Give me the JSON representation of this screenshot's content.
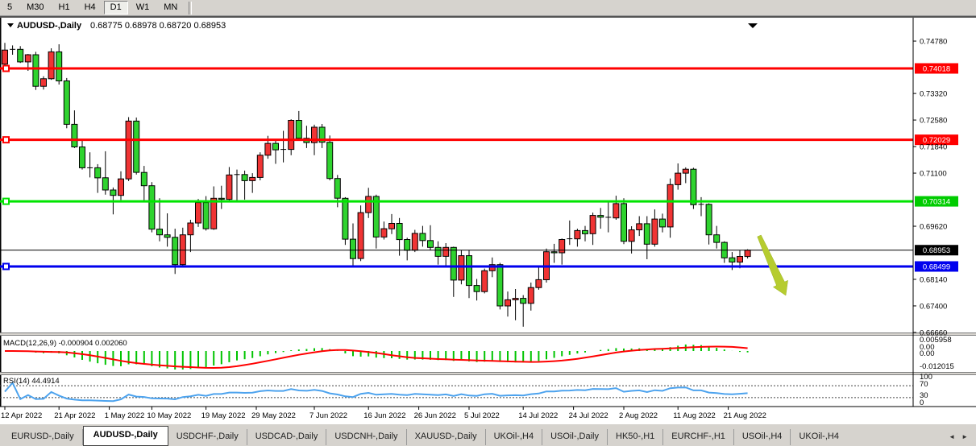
{
  "toolbar": {
    "timeframes": [
      "5",
      "M30",
      "H1",
      "H4",
      "D1",
      "W1",
      "MN"
    ],
    "active": "D1"
  },
  "chart": {
    "title_symbol": "AUDUSD-,Daily",
    "title_ohlc": "0.68775 0.68978 0.68720 0.68953"
  },
  "chart_data": {
    "type": "candlestick",
    "symbol": "AUDUSD-,Daily",
    "colors": {
      "up_body": "#f03434",
      "down_body": "#2fd32f",
      "wick": "#000000",
      "macd_histogram": "#00c400",
      "macd_signal": "#ff0000",
      "rsi_line": "#4da3ee",
      "arrow": "#b6cc2f"
    },
    "y_axis_ticks": [
      "0.74780",
      "0.73320",
      "0.72580",
      "0.71840",
      "0.71100",
      "0.69620",
      "0.68140",
      "0.67400",
      "0.66660"
    ],
    "h_lines": [
      {
        "label": "0.74018",
        "price": 0.74018,
        "color": "#ff0000"
      },
      {
        "label": "0.72029",
        "price": 0.72029,
        "color": "#ff0000"
      },
      {
        "label": "0.70314",
        "price": 0.70314,
        "color": "#00e400"
      },
      {
        "label": "0.68499",
        "price": 0.68499,
        "color": "#0000ee"
      }
    ],
    "current_price": {
      "label": "0.68953",
      "price": 0.68953,
      "color": "#000000"
    },
    "x_labels": [
      {
        "label": "12 Apr 2022",
        "i": 0
      },
      {
        "label": "21 Apr 2022",
        "i": 7
      },
      {
        "label": "1 May 2022",
        "i": 13.5
      },
      {
        "label": "10 May 2022",
        "i": 19
      },
      {
        "label": "19 May 2022",
        "i": 26
      },
      {
        "label": "29 May 2022",
        "i": 32.5
      },
      {
        "label": "7 Jun 2022",
        "i": 40
      },
      {
        "label": "16 Jun 2022",
        "i": 47
      },
      {
        "label": "26 Jun 2022",
        "i": 53.5
      },
      {
        "label": "5 Jul 2022",
        "i": 60
      },
      {
        "label": "14 Jul 2022",
        "i": 67
      },
      {
        "label": "24 Jul 2022",
        "i": 73.5
      },
      {
        "label": "2 Aug 2022",
        "i": 80
      },
      {
        "label": "11 Aug 2022",
        "i": 87
      },
      {
        "label": "21 Aug 2022",
        "i": 93.5
      }
    ],
    "candles": [
      [
        0.7414,
        0.7473,
        0.7405,
        0.7453
      ],
      [
        0.7453,
        0.7466,
        0.744,
        0.7455
      ],
      [
        0.7455,
        0.7464,
        0.7417,
        0.742
      ],
      [
        0.742,
        0.7442,
        0.7395,
        0.744
      ],
      [
        0.744,
        0.7448,
        0.7342,
        0.7352
      ],
      [
        0.7352,
        0.738,
        0.7343,
        0.7373
      ],
      [
        0.7373,
        0.7458,
        0.737,
        0.7448
      ],
      [
        0.7448,
        0.7469,
        0.7357,
        0.7367
      ],
      [
        0.7367,
        0.7375,
        0.7235,
        0.7246
      ],
      [
        0.7246,
        0.7285,
        0.718,
        0.7183
      ],
      [
        0.7183,
        0.72,
        0.712,
        0.7125
      ],
      [
        0.7125,
        0.7168,
        0.7098,
        0.7125
      ],
      [
        0.7125,
        0.7135,
        0.7055,
        0.7097
      ],
      [
        0.7097,
        0.7171,
        0.705,
        0.7063
      ],
      [
        0.7063,
        0.707,
        0.6995,
        0.7048
      ],
      [
        0.7048,
        0.7115,
        0.7035,
        0.7094
      ],
      [
        0.7094,
        0.7266,
        0.7088,
        0.7255
      ],
      [
        0.7255,
        0.7265,
        0.7106,
        0.7112
      ],
      [
        0.7112,
        0.713,
        0.703,
        0.7075
      ],
      [
        0.7075,
        0.7085,
        0.6945,
        0.6954
      ],
      [
        0.6954,
        0.704,
        0.692,
        0.6938
      ],
      [
        0.6938,
        0.6998,
        0.6905,
        0.6931
      ],
      [
        0.6931,
        0.6955,
        0.6829,
        0.6855
      ],
      [
        0.6855,
        0.6958,
        0.685,
        0.6938
      ],
      [
        0.6938,
        0.698,
        0.689,
        0.6971
      ],
      [
        0.6971,
        0.7038,
        0.696,
        0.7028
      ],
      [
        0.7028,
        0.7046,
        0.695,
        0.6955
      ],
      [
        0.6955,
        0.7073,
        0.6952,
        0.704
      ],
      [
        0.704,
        0.7075,
        0.701,
        0.7037
      ],
      [
        0.7037,
        0.7127,
        0.703,
        0.7105
      ],
      [
        0.7105,
        0.712,
        0.7033,
        0.7106
      ],
      [
        0.7106,
        0.7117,
        0.7036,
        0.7089
      ],
      [
        0.7089,
        0.711,
        0.7055,
        0.7098
      ],
      [
        0.7098,
        0.7168,
        0.709,
        0.716
      ],
      [
        0.716,
        0.7214,
        0.715,
        0.7193
      ],
      [
        0.7193,
        0.7205,
        0.7136,
        0.7175
      ],
      [
        0.7175,
        0.7228,
        0.714,
        0.7176
      ],
      [
        0.7176,
        0.726,
        0.716,
        0.7257
      ],
      [
        0.7257,
        0.7283,
        0.72,
        0.7207
      ],
      [
        0.7207,
        0.7242,
        0.718,
        0.7195
      ],
      [
        0.7195,
        0.7245,
        0.716,
        0.7238
      ],
      [
        0.7238,
        0.7247,
        0.718,
        0.7196
      ],
      [
        0.7196,
        0.7215,
        0.709,
        0.7095
      ],
      [
        0.7095,
        0.7105,
        0.7015,
        0.704
      ],
      [
        0.704,
        0.7043,
        0.691,
        0.6926
      ],
      [
        0.6926,
        0.697,
        0.685,
        0.6872
      ],
      [
        0.6872,
        0.702,
        0.6865,
        0.7
      ],
      [
        0.7,
        0.7069,
        0.6985,
        0.7045
      ],
      [
        0.7045,
        0.705,
        0.69,
        0.6932
      ],
      [
        0.6932,
        0.6975,
        0.6925,
        0.6955
      ],
      [
        0.6955,
        0.6996,
        0.694,
        0.697
      ],
      [
        0.697,
        0.6985,
        0.688,
        0.6925
      ],
      [
        0.6925,
        0.693,
        0.6867,
        0.6895
      ],
      [
        0.6895,
        0.6952,
        0.689,
        0.6942
      ],
      [
        0.6942,
        0.6963,
        0.6905,
        0.6922
      ],
      [
        0.6922,
        0.6965,
        0.6895,
        0.6903
      ],
      [
        0.6903,
        0.692,
        0.6855,
        0.6878
      ],
      [
        0.6878,
        0.6915,
        0.685,
        0.6903
      ],
      [
        0.6903,
        0.6905,
        0.6765,
        0.6812
      ],
      [
        0.6812,
        0.6895,
        0.68,
        0.688
      ],
      [
        0.688,
        0.6895,
        0.6762,
        0.6797
      ],
      [
        0.6797,
        0.6815,
        0.6755,
        0.678
      ],
      [
        0.678,
        0.6844,
        0.6775,
        0.6838
      ],
      [
        0.6838,
        0.6875,
        0.682,
        0.6855
      ],
      [
        0.6855,
        0.686,
        0.673,
        0.674
      ],
      [
        0.674,
        0.678,
        0.671,
        0.6757
      ],
      [
        0.6757,
        0.6787,
        0.67,
        0.6761
      ],
      [
        0.6761,
        0.677,
        0.6682,
        0.6747
      ],
      [
        0.6747,
        0.6805,
        0.6727,
        0.6791
      ],
      [
        0.6791,
        0.685,
        0.6785,
        0.6813
      ],
      [
        0.6813,
        0.69,
        0.6805,
        0.6891
      ],
      [
        0.6891,
        0.6913,
        0.686,
        0.6888
      ],
      [
        0.6888,
        0.6928,
        0.6855,
        0.6925
      ],
      [
        0.6925,
        0.6978,
        0.691,
        0.6927
      ],
      [
        0.6927,
        0.6955,
        0.6905,
        0.695
      ],
      [
        0.695,
        0.6963,
        0.692,
        0.6941
      ],
      [
        0.6941,
        0.7,
        0.691,
        0.6992
      ],
      [
        0.6992,
        0.7013,
        0.6955,
        0.6987
      ],
      [
        0.6987,
        0.7032,
        0.6945,
        0.6985
      ],
      [
        0.6985,
        0.7047,
        0.698,
        0.7025
      ],
      [
        0.7025,
        0.704,
        0.6912,
        0.692
      ],
      [
        0.692,
        0.6962,
        0.6886,
        0.6952
      ],
      [
        0.6952,
        0.699,
        0.6935,
        0.6969
      ],
      [
        0.6969,
        0.699,
        0.687,
        0.6912
      ],
      [
        0.6912,
        0.7009,
        0.6905,
        0.6982
      ],
      [
        0.6982,
        0.6997,
        0.6945,
        0.696
      ],
      [
        0.696,
        0.7095,
        0.693,
        0.7078
      ],
      [
        0.7078,
        0.7137,
        0.7064,
        0.711
      ],
      [
        0.711,
        0.7126,
        0.7082,
        0.7121
      ],
      [
        0.7121,
        0.7125,
        0.701,
        0.7022
      ],
      [
        0.7022,
        0.7043,
        0.699,
        0.7023
      ],
      [
        0.7023,
        0.7026,
        0.6911,
        0.6938
      ],
      [
        0.6938,
        0.6963,
        0.69,
        0.6917
      ],
      [
        0.6917,
        0.692,
        0.686,
        0.6874
      ],
      [
        0.6874,
        0.689,
        0.684,
        0.6862
      ],
      [
        0.6862,
        0.6895,
        0.6845,
        0.6878
      ],
      [
        0.68775,
        0.68978,
        0.6872,
        0.68953
      ]
    ],
    "macd": {
      "label_full": "MACD(12,26,9) -0.000904 0.002060",
      "params": [
        12,
        26,
        9
      ],
      "main_value": "-0.000904",
      "signal_value": "0.002060",
      "axis_labels": [
        "0.005958",
        "0.00",
        "0.00",
        "-0.012015"
      ]
    },
    "rsi": {
      "label_full": "RSI(14) 44.4914",
      "period": 14,
      "value": "44.4914",
      "levels": [
        70,
        30
      ],
      "axis_labels": [
        "100",
        "70",
        "30",
        "0"
      ]
    },
    "annotations": [
      {
        "name": "sell-arrow",
        "shape": "arrow",
        "from": [
          942,
          293
        ],
        "to": [
          975,
          367
        ],
        "color": "#b6cc2f"
      }
    ]
  },
  "tabs": {
    "items": [
      "EURUSD-,Daily",
      "AUDUSD-,Daily",
      "USDCHF-,Daily",
      "USDCAD-,Daily",
      "USDCNH-,Daily",
      "XAUUSD-,Daily",
      "UKOil-,H4",
      "USOil-,Daily",
      "HK50-,H1",
      "EURCHF-,H1",
      "USOil-,H4",
      "UKOil-,H4"
    ],
    "active_index": 1,
    "scroll_left_icon": "◄",
    "scroll_right_icon": "►"
  }
}
